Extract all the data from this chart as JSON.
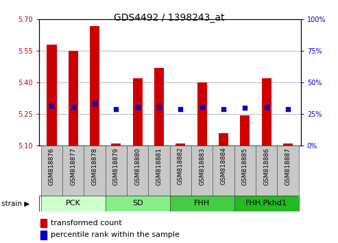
{
  "title": "GDS4492 / 1398243_at",
  "samples": [
    "GSM818876",
    "GSM818877",
    "GSM818878",
    "GSM818879",
    "GSM818880",
    "GSM818881",
    "GSM818882",
    "GSM818883",
    "GSM818884",
    "GSM818885",
    "GSM818886",
    "GSM818887"
  ],
  "bar_values": [
    5.58,
    5.55,
    5.67,
    5.11,
    5.42,
    5.47,
    5.11,
    5.4,
    5.16,
    5.245,
    5.42,
    5.11
  ],
  "blue_dot_values": [
    5.29,
    5.285,
    5.3,
    5.275,
    5.285,
    5.285,
    5.275,
    5.285,
    5.275,
    5.28,
    5.285,
    5.275
  ],
  "y_min": 5.1,
  "y_max": 5.7,
  "y_ticks": [
    5.1,
    5.25,
    5.4,
    5.55,
    5.7
  ],
  "right_ticks": [
    0,
    25,
    50,
    75,
    100
  ],
  "bar_color": "#cc0000",
  "dot_color": "#0000cc",
  "groups": [
    {
      "label": "PCK",
      "start": 0,
      "end": 3,
      "color": "#ccffcc"
    },
    {
      "label": "SD",
      "start": 3,
      "end": 6,
      "color": "#88ee88"
    },
    {
      "label": "FHH",
      "start": 6,
      "end": 9,
      "color": "#44cc44"
    },
    {
      "label": "FHH.Pkhd1",
      "start": 9,
      "end": 12,
      "color": "#22bb22"
    }
  ],
  "legend_red": "transformed count",
  "legend_blue": "percentile rank within the sample",
  "strain_label": "strain",
  "left_tick_color": "#cc0000",
  "right_tick_color": "#0000cc",
  "bar_width": 0.45,
  "dot_size": 25,
  "cell_color": "#c8c8c8",
  "title_fontsize": 10,
  "tick_fontsize": 7,
  "label_fontsize": 6.5,
  "group_fontsize": 8,
  "legend_fontsize": 8
}
